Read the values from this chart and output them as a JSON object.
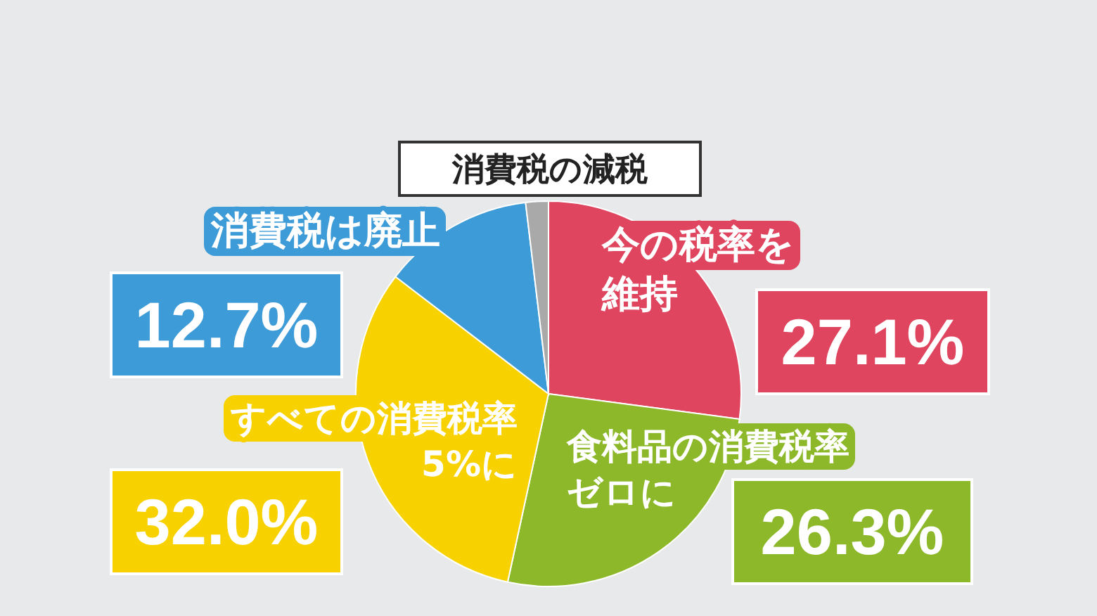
{
  "chart_data": {
    "type": "pie",
    "title": "消費税の減税",
    "categories": [
      "今の税率を維持",
      "食料品の消費税率ゼロに",
      "すべての消費税率5%に",
      "消費税は廃止",
      null
    ],
    "values": [
      27.1,
      26.3,
      32.0,
      12.7,
      1.9
    ],
    "colors": [
      "#e0455f",
      "#8cb82a",
      "#f7d200",
      "#3d9bd8",
      "#a9a9a9"
    ],
    "value_labels": [
      "27.1%",
      "26.3%",
      "32.0%",
      "12.7%",
      null
    ],
    "legend": false
  }
}
